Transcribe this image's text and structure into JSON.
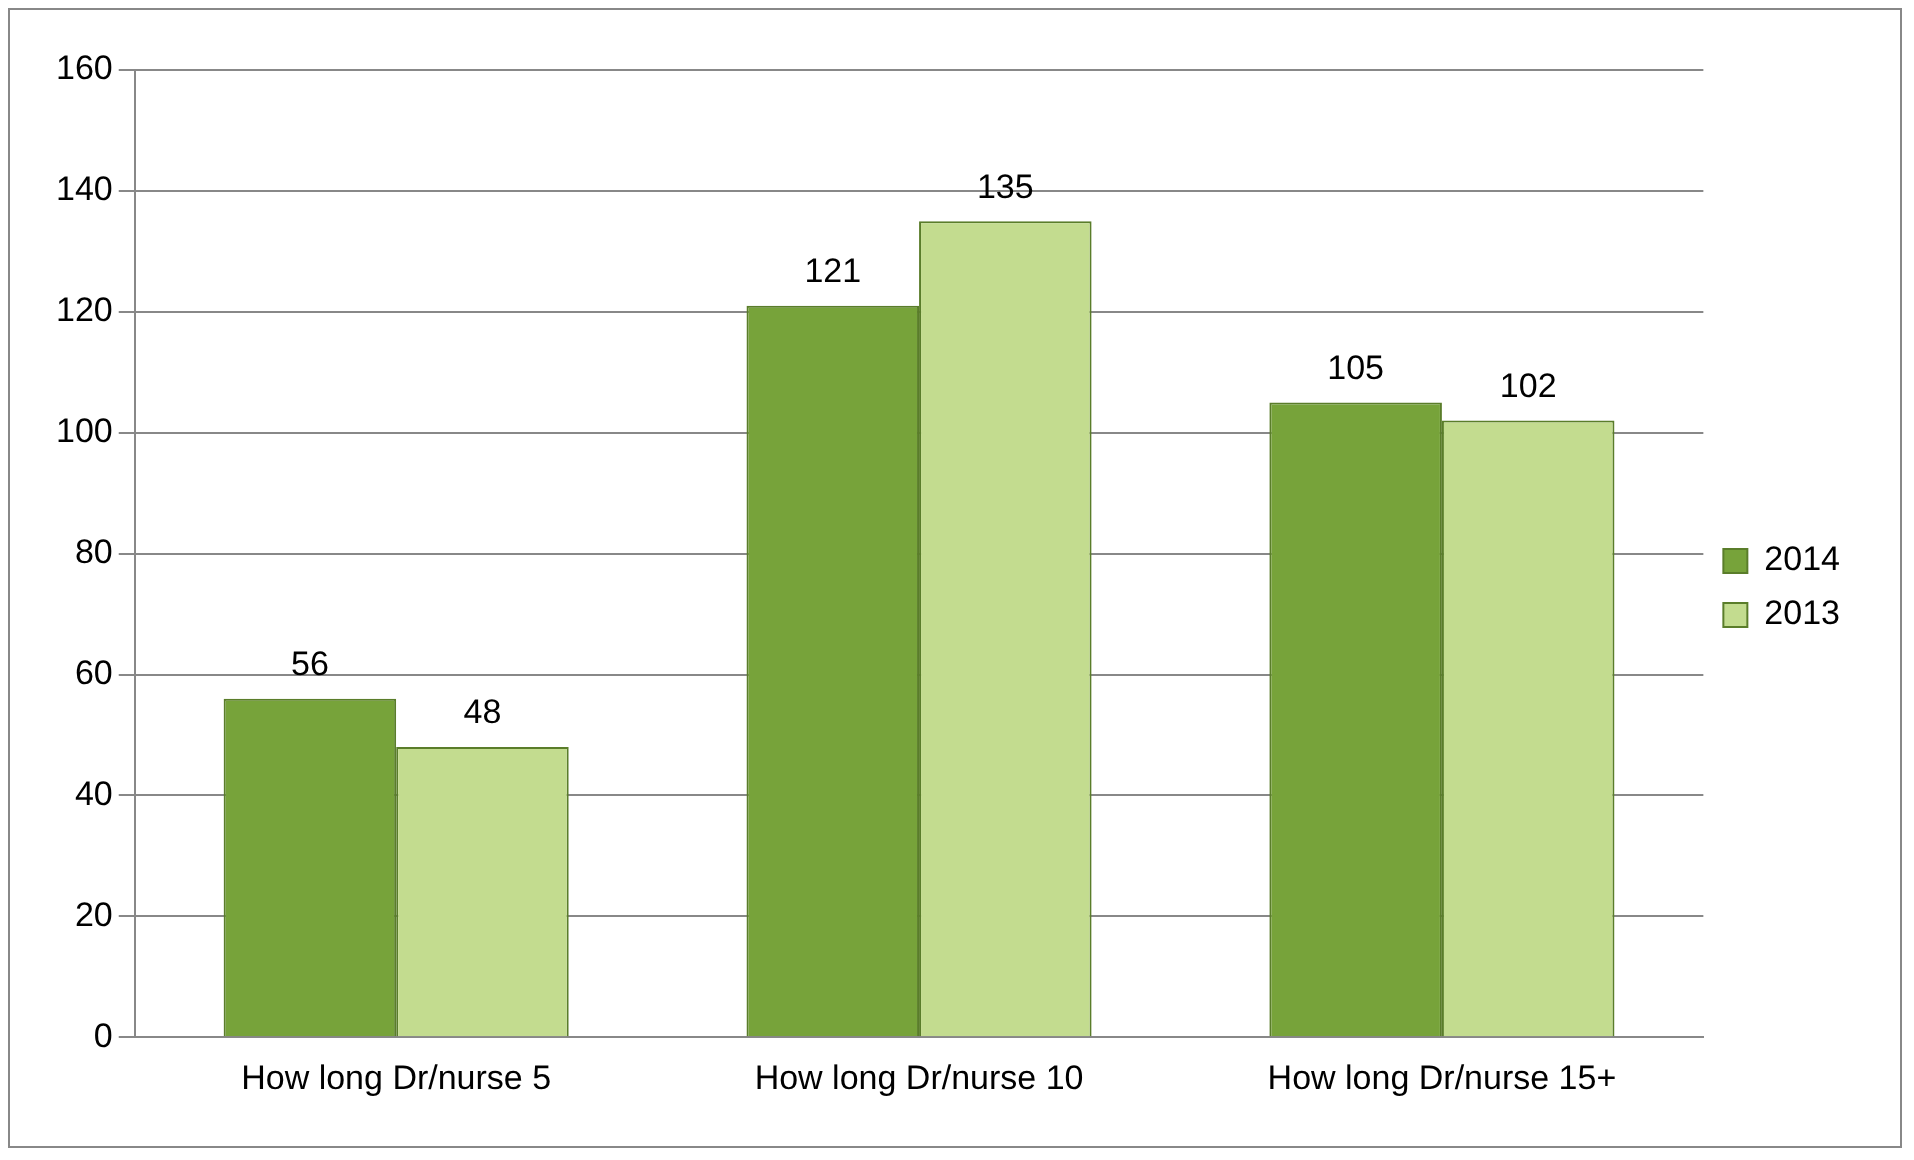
{
  "chart_data": {
    "type": "bar",
    "categories": [
      "How long Dr/nurse 5",
      "How long Dr/nurse 10",
      "How long Dr/nurse 15+"
    ],
    "series": [
      {
        "name": "2014",
        "color": "#77a33a",
        "values": [
          56,
          121,
          105
        ]
      },
      {
        "name": "2013",
        "color": "#c3dc8f",
        "values": [
          48,
          135,
          102
        ]
      }
    ],
    "ylim": [
      0,
      160
    ],
    "yticks": [
      0,
      20,
      40,
      60,
      80,
      100,
      120,
      140,
      160
    ],
    "grid": "y",
    "legend": "right",
    "data_labels": true
  }
}
